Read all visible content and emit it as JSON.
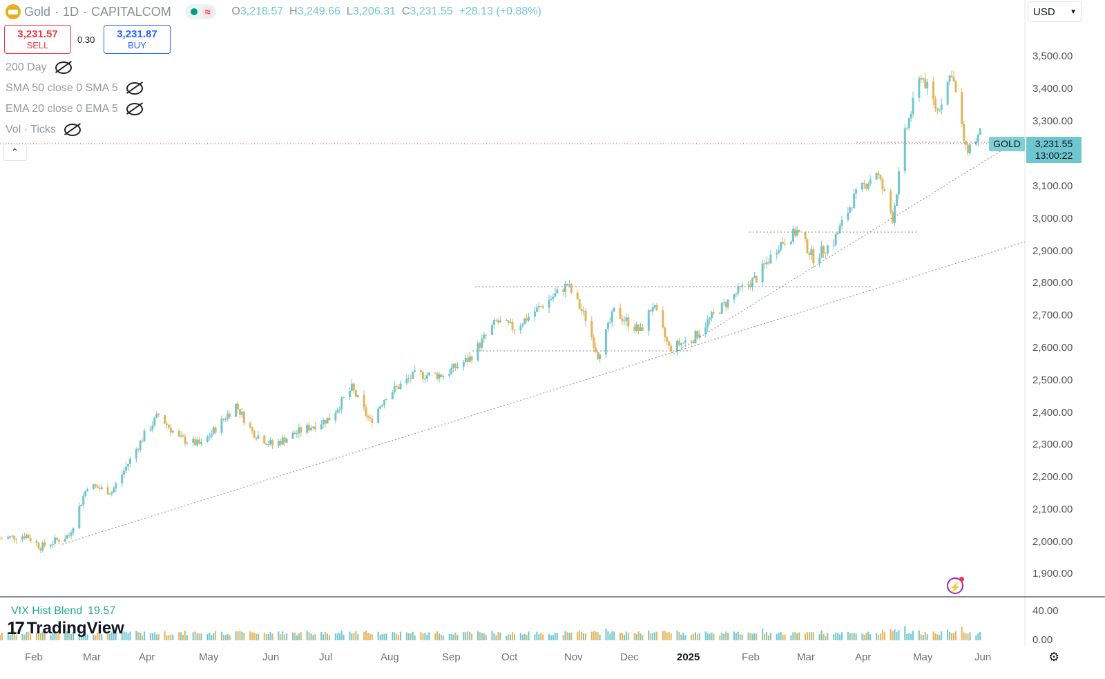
{
  "header": {
    "symbol": "Gold",
    "interval": "1D",
    "exchange": "CAPITALCOM",
    "open_label": "O",
    "open": "3,218.57",
    "high_label": "H",
    "high": "3,249.66",
    "low_label": "L",
    "low": "3,206.31",
    "close_label": "C",
    "close": "3,231.55",
    "change": "+28.13 (+0.88%)"
  },
  "trade": {
    "sell_price": "3,231.57",
    "sell_label": "SELL",
    "spread": "0.30",
    "buy_price": "3,231.87",
    "buy_label": "BUY"
  },
  "indicators": [
    "200 Day",
    "SMA 50 close 0 SMA 5",
    "EMA 20 close 0 EMA 5",
    "Vol · Ticks"
  ],
  "currency": "USD",
  "price_tag": {
    "symbol": "GOLD",
    "price": "3,231.55",
    "countdown": "13:00:22"
  },
  "y_axis": [
    "3,500.00",
    "3,400.00",
    "3,300.00",
    "3,100.00",
    "3,000.00",
    "2,900.00",
    "2,800.00",
    "2,700.00",
    "2,600.00",
    "2,500.00",
    "2,400.00",
    "2,300.00",
    "2,200.00",
    "2,100.00",
    "2,000.00",
    "1,900.00"
  ],
  "x_axis": [
    "Feb",
    "Mar",
    "Apr",
    "May",
    "Jun",
    "Jul",
    "Aug",
    "Sep",
    "Oct",
    "Nov",
    "Dec",
    "2025",
    "Feb",
    "Mar",
    "Apr",
    "May",
    "Jun"
  ],
  "vix": {
    "name": "VIX Hist Blend",
    "value": "19.57",
    "axis": [
      "40.00",
      "0.00"
    ]
  },
  "brand": "TradingView",
  "colors": {
    "up": "#6ec6cf",
    "down": "#e2b45a",
    "accent": "#2962ff",
    "sell": "#f23645"
  },
  "chart_data": {
    "type": "candlestick",
    "ylim": [
      1850,
      3560
    ],
    "x_range": [
      "2024-01-25",
      "2025-06-12"
    ],
    "close_series": [
      [
        "2024-01-25",
        2020
      ],
      [
        "2024-02-07",
        2030
      ],
      [
        "2024-02-14",
        1995
      ],
      [
        "2024-02-28",
        2030
      ],
      [
        "2024-03-08",
        2180
      ],
      [
        "2024-03-20",
        2160
      ],
      [
        "2024-04-05",
        2330
      ],
      [
        "2024-04-12",
        2390
      ],
      [
        "2024-04-22",
        2320
      ],
      [
        "2024-05-03",
        2300
      ],
      [
        "2024-05-20",
        2420
      ],
      [
        "2024-05-28",
        2340
      ],
      [
        "2024-06-07",
        2300
      ],
      [
        "2024-06-20",
        2340
      ],
      [
        "2024-07-05",
        2380
      ],
      [
        "2024-07-16",
        2470
      ],
      [
        "2024-07-25",
        2370
      ],
      [
        "2024-08-02",
        2450
      ],
      [
        "2024-08-16",
        2510
      ],
      [
        "2024-08-30",
        2510
      ],
      [
        "2024-09-12",
        2560
      ],
      [
        "2024-09-25",
        2670
      ],
      [
        "2024-10-04",
        2650
      ],
      [
        "2024-10-18",
        2720
      ],
      [
        "2024-10-30",
        2780
      ],
      [
        "2024-11-08",
        2680
      ],
      [
        "2024-11-14",
        2570
      ],
      [
        "2024-11-22",
        2700
      ],
      [
        "2024-12-05",
        2640
      ],
      [
        "2024-12-11",
        2720
      ],
      [
        "2024-12-19",
        2590
      ],
      [
        "2024-12-31",
        2620
      ],
      [
        "2025-01-10",
        2690
      ],
      [
        "2025-01-22",
        2760
      ],
      [
        "2025-01-31",
        2800
      ],
      [
        "2025-02-11",
        2900
      ],
      [
        "2025-02-20",
        2940
      ],
      [
        "2025-02-28",
        2860
      ],
      [
        "2025-03-10",
        2910
      ],
      [
        "2025-03-20",
        3040
      ],
      [
        "2025-03-31",
        3120
      ],
      [
        "2025-04-08",
        2980
      ],
      [
        "2025-04-14",
        3230
      ],
      [
        "2025-04-22",
        3410
      ],
      [
        "2025-04-30",
        3300
      ],
      [
        "2025-05-07",
        3420
      ],
      [
        "2025-05-14",
        3180
      ],
      [
        "2025-05-21",
        3231.55
      ]
    ],
    "reference_lines": [
      2960,
      2790,
      2600
    ],
    "current_price": 3231.55,
    "volume_axis": [
      0,
      40
    ],
    "volume_last": 19.57
  }
}
